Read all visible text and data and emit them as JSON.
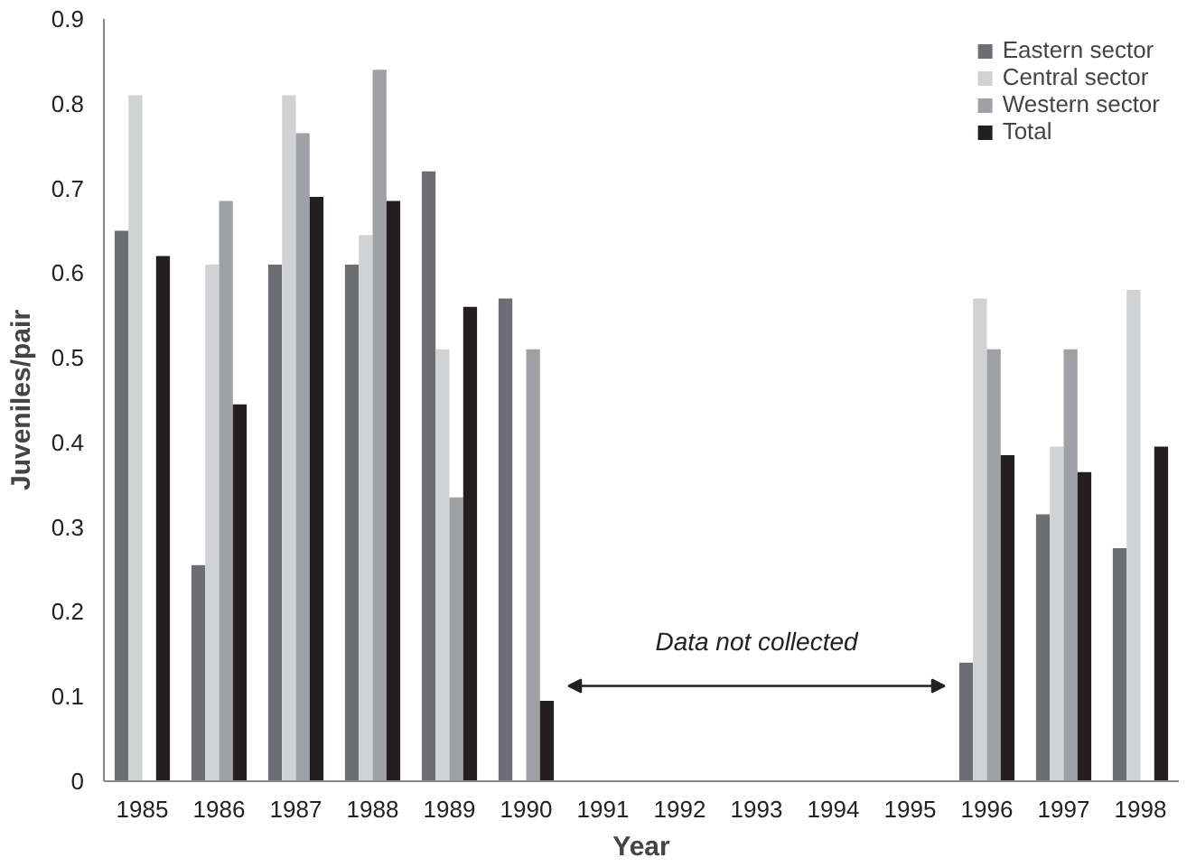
{
  "chart_data": {
    "type": "bar",
    "xlabel": "Year",
    "ylabel": "Juveniles/pair",
    "categories": [
      "1985",
      "1986",
      "1987",
      "1988",
      "1989",
      "1990",
      "1991",
      "1992",
      "1993",
      "1994",
      "1995",
      "1996",
      "1997",
      "1998"
    ],
    "series": [
      {
        "name": "Eastern sector",
        "color": "#6d6e71",
        "values": [
          0.65,
          0.255,
          0.61,
          0.61,
          0.72,
          0.57,
          null,
          null,
          null,
          null,
          null,
          0.14,
          0.315,
          0.275
        ]
      },
      {
        "name": "Central sector",
        "color": "#d1d2d4",
        "values": [
          0.81,
          0.61,
          0.81,
          0.645,
          0.51,
          null,
          null,
          null,
          null,
          null,
          null,
          0.57,
          0.395,
          0.58
        ]
      },
      {
        "name": "Western sector",
        "color": "#a0a1a4",
        "values": [
          null,
          0.685,
          0.765,
          0.84,
          0.335,
          0.51,
          null,
          null,
          null,
          null,
          null,
          0.51,
          0.51,
          null
        ]
      },
      {
        "name": "Total",
        "color": "#231f20",
        "values": [
          0.62,
          0.445,
          0.69,
          0.685,
          0.56,
          0.095,
          null,
          null,
          null,
          null,
          null,
          0.385,
          0.365,
          0.395
        ]
      }
    ],
    "ylim": [
      0,
      0.9
    ],
    "yticks": [
      0,
      0.1,
      0.2,
      0.3,
      0.4,
      0.5,
      0.6,
      0.7,
      0.8,
      0.9
    ],
    "grid": false,
    "legend": "top right",
    "annotations": [
      "Data not collected"
    ]
  }
}
